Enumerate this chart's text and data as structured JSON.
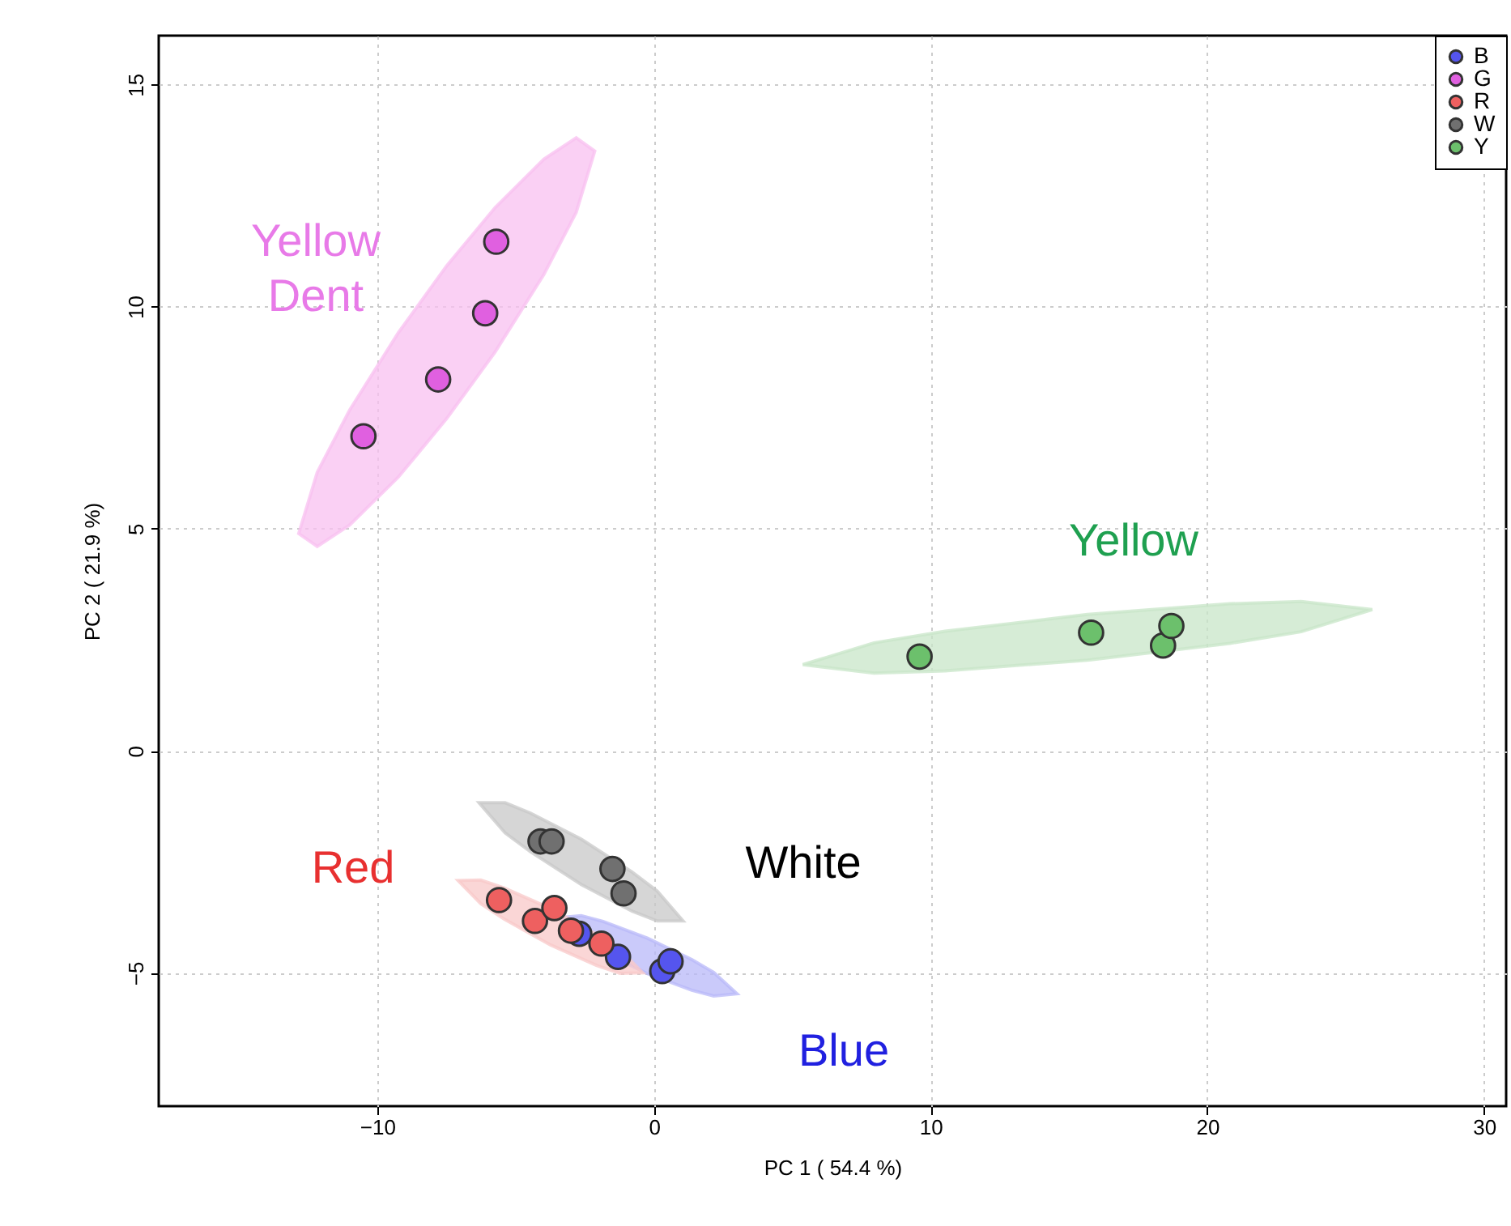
{
  "chart_data": {
    "type": "scatter",
    "xlabel": "PC 1 ( 54.4 %)",
    "ylabel": "PC 2 ( 21.9 %)",
    "xlim": [
      -17.9,
      30.8
    ],
    "ylim": [
      -8.0,
      16.1
    ],
    "xticks": [
      -10,
      0,
      10,
      20,
      30
    ],
    "yticks": [
      -5,
      0,
      5,
      10,
      15
    ],
    "grid": true,
    "legend": "top right",
    "marker": "circle",
    "series": [
      {
        "type": "area",
        "marker": "none",
        "color": "#b8b8f8",
        "x": [
          -3.45,
          -2.63,
          -1.84,
          -0.23,
          1.37,
          2.16,
          3.0,
          2.16,
          1.37,
          -0.23,
          -1.84,
          -2.63
        ],
        "values": [
          -3.76,
          -4.24,
          -4.53,
          -5.02,
          -5.39,
          -5.52,
          -5.47,
          -4.99,
          -4.7,
          -4.22,
          -3.84,
          -3.71
        ]
      },
      {
        "type": "area",
        "marker": "none",
        "color": "#f8c0f0",
        "x": [
          -12.84,
          -12.17,
          -11.0,
          -9.24,
          -7.49,
          -5.74,
          -3.98,
          -2.81,
          -2.14,
          -2.81,
          -3.98,
          -5.74,
          -7.49,
          -9.24,
          -11.0,
          -12.17
        ],
        "values": [
          4.89,
          4.6,
          5.08,
          6.16,
          7.48,
          8.98,
          10.72,
          12.12,
          13.5,
          13.8,
          13.32,
          12.23,
          10.92,
          9.41,
          7.67,
          6.27
        ]
      },
      {
        "type": "area",
        "marker": "none",
        "color": "#f8c8c8",
        "x": [
          -7.08,
          -6.26,
          -5.41,
          -3.74,
          -2.08,
          -1.23,
          -0.41,
          -1.23,
          -2.08,
          -3.74,
          -5.41,
          -6.26
        ],
        "values": [
          -2.92,
          -3.44,
          -3.79,
          -4.37,
          -4.83,
          -5.01,
          -5.0,
          -4.48,
          -4.13,
          -3.55,
          -3.09,
          -2.91
        ]
      },
      {
        "type": "area",
        "marker": "none",
        "color": "#c8c8c8",
        "x": [
          -6.32,
          -5.38,
          -4.47,
          -2.63,
          -0.79,
          0.12,
          1.05,
          0.12,
          -0.79,
          -2.63,
          -4.47,
          -5.38
        ],
        "values": [
          -1.17,
          -1.85,
          -2.27,
          -3.01,
          -3.61,
          -3.83,
          -3.83,
          -3.16,
          -2.73,
          -1.99,
          -1.4,
          -1.17
        ]
      },
      {
        "type": "area",
        "marker": "none",
        "color": "#c8e6c8",
        "x": [
          5.38,
          7.95,
          10.52,
          15.67,
          20.82,
          23.39,
          25.96,
          23.39,
          20.82,
          15.67,
          10.52,
          7.95
        ],
        "values": [
          1.94,
          1.75,
          1.8,
          2.04,
          2.42,
          2.68,
          3.18,
          3.36,
          3.31,
          3.07,
          2.69,
          2.43
        ]
      },
      {
        "name": "B",
        "color": "#5555ee",
        "x": [
          -2.7,
          -1.3,
          0.3,
          0.6
        ],
        "values": [
          -4.12,
          -4.64,
          -4.96,
          -4.74
        ]
      },
      {
        "name": "G",
        "color": "#e060e0",
        "x": [
          -10.5,
          -7.8,
          -6.1,
          -5.7
        ],
        "values": [
          7.08,
          8.36,
          9.85,
          11.46
        ]
      },
      {
        "name": "R",
        "color": "#ee6060",
        "x": [
          -5.6,
          -4.3,
          -3.6,
          -3.0,
          -1.9
        ],
        "values": [
          -3.36,
          -3.83,
          -3.54,
          -4.05,
          -4.34
        ]
      },
      {
        "name": "W",
        "color": "#707070",
        "x": [
          -4.1,
          -3.7,
          -1.5,
          -1.1
        ],
        "values": [
          -2.04,
          -2.04,
          -2.66,
          -3.21
        ]
      },
      {
        "name": "Y",
        "color": "#6cc06c",
        "x": [
          9.6,
          15.8,
          18.4,
          18.7
        ],
        "values": [
          2.12,
          2.66,
          2.37,
          2.81
        ]
      }
    ],
    "annotations": [
      "Blue",
      "Yellow Dent",
      "Red",
      "White",
      "Yellow"
    ]
  }
}
